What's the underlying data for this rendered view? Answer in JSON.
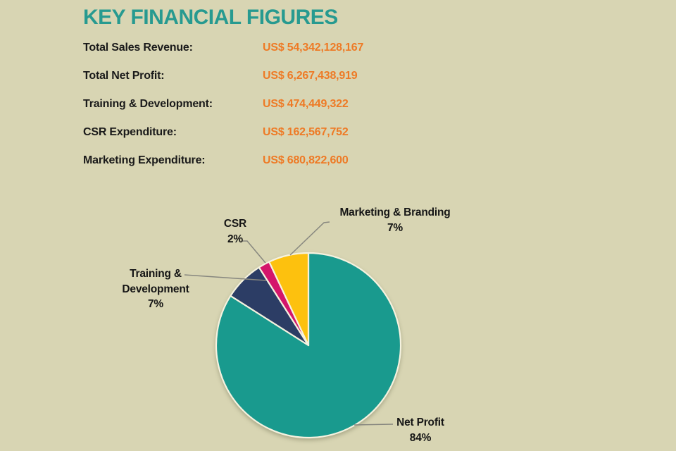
{
  "page": {
    "background_color": "#d8d5b3"
  },
  "header": {
    "title": "KEY FINANCIAL FIGURES",
    "title_color": "#279a90"
  },
  "figures": {
    "label_color": "#1a1a1a",
    "value_color": "#ee7a25",
    "items": [
      {
        "label": "Total Sales Revenue:",
        "value": "US$ 54,342,128,167"
      },
      {
        "label": "Total Net Profit:",
        "value": "US$ 6,267,438,919"
      },
      {
        "label": "Training & Development:",
        "value": "US$ 474,449,322"
      },
      {
        "label": "CSR Expenditure:",
        "value": "US$ 162,567,752"
      },
      {
        "label": "Marketing Expenditure:",
        "value": "US$ 680,822,600"
      }
    ]
  },
  "chart_data": {
    "type": "pie",
    "title": "",
    "categories": [
      "Net Profit",
      "Training & Development",
      "CSR",
      "Marketing & Branding"
    ],
    "values": [
      84,
      7,
      2,
      7
    ],
    "unit": "%",
    "colors": [
      "#199a8e",
      "#2c3d65",
      "#d4156b",
      "#fdc10e"
    ],
    "slugs": [
      "net-profit",
      "training-development",
      "csr",
      "marketing-branding"
    ],
    "start_angle_deg": 0,
    "direction": "clockwise",
    "separator_color": "#f5f2df",
    "leader_line_color": "#87877f",
    "labels_outside": true,
    "labels": {
      "marketing": {
        "name": "Marketing & Branding",
        "pct": "7%"
      },
      "csr": {
        "name": "CSR",
        "pct": "2%"
      },
      "training": {
        "name": "Training & Development",
        "pct": "7%"
      },
      "net_profit": {
        "name": "Net Profit",
        "pct": "84%"
      }
    }
  }
}
